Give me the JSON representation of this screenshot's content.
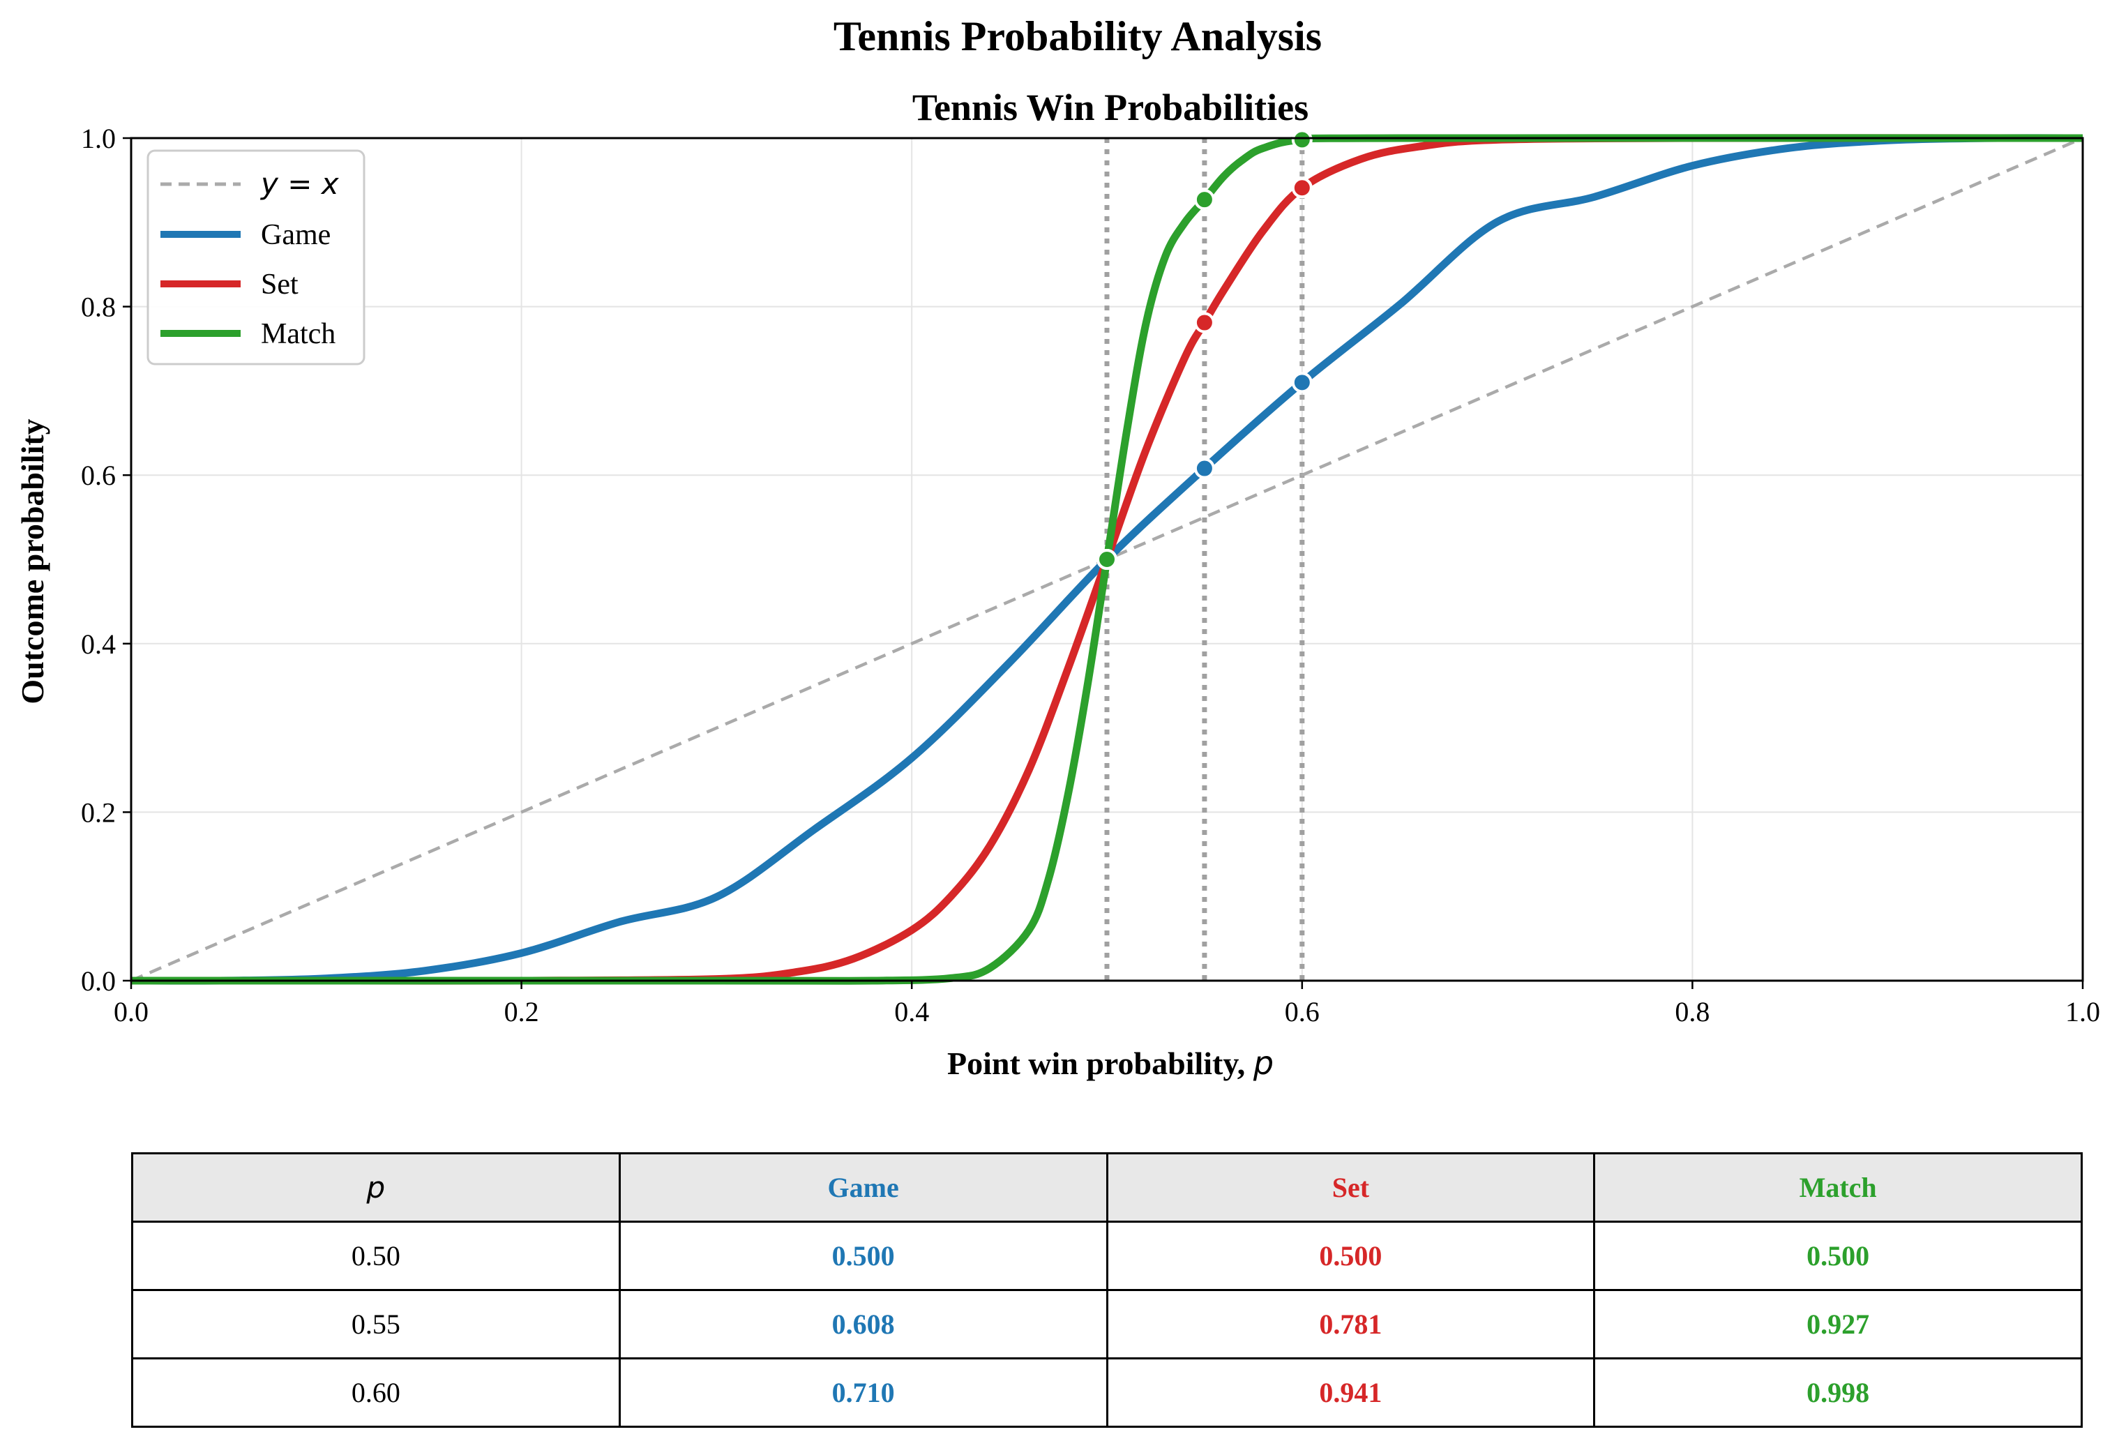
{
  "figure_title": "Tennis Probability Analysis",
  "colors": {
    "game": "#1f77b4",
    "set": "#d62728",
    "match": "#2ca02c",
    "ref": "#aaaaaa",
    "grid": "#e4e4e4"
  },
  "chart_data": {
    "type": "line",
    "title": "Tennis Win Probabilities",
    "xlabel": "Point win probability, ",
    "xlabel_symbol": "p",
    "ylabel": "Outcome probability",
    "xlim": [
      0,
      1
    ],
    "ylim": [
      0,
      1
    ],
    "xticks": [
      "0.0",
      "0.2",
      "0.4",
      "0.6",
      "0.8",
      "1.0"
    ],
    "yticks": [
      "0.0",
      "0.2",
      "0.4",
      "0.6",
      "0.8",
      "1.0"
    ],
    "grid": true,
    "legend_placement": "top-left",
    "legend": [
      "y = x",
      "Game",
      "Set",
      "Match"
    ],
    "reference_line": {
      "name": "y = x",
      "style": "dashed"
    },
    "vertical_markers": [
      0.5,
      0.55,
      0.6
    ],
    "series": [
      {
        "name": "Game",
        "x": [
          0,
          0.05,
          0.1,
          0.15,
          0.2,
          0.25,
          0.3,
          0.35,
          0.4,
          0.45,
          0.5,
          0.55,
          0.6,
          0.65,
          0.7,
          0.75,
          0.8,
          0.85,
          0.9,
          0.95,
          1
        ],
        "y": [
          0,
          0.0001,
          0.0027,
          0.0117,
          0.0328,
          0.0696,
          0.0994,
          0.1794,
          0.2643,
          0.3774,
          0.5,
          0.608,
          0.71,
          0.8023,
          0.9006,
          0.9304,
          0.9672,
          0.9883,
          0.9973,
          0.9999,
          1
        ]
      },
      {
        "name": "Set",
        "x": [
          0,
          0.1,
          0.2,
          0.3,
          0.34,
          0.37,
          0.4,
          0.42,
          0.44,
          0.46,
          0.48,
          0.5,
          0.52,
          0.54,
          0.55,
          0.56,
          0.58,
          0.6,
          0.63,
          0.66,
          0.7,
          0.8,
          1
        ],
        "y": [
          0,
          0,
          0,
          0.002,
          0.01,
          0.026,
          0.06,
          0.1,
          0.16,
          0.25,
          0.37,
          0.5,
          0.63,
          0.74,
          0.781,
          0.82,
          0.89,
          0.941,
          0.975,
          0.99,
          0.998,
          1,
          1
        ]
      },
      {
        "name": "Match",
        "x": [
          0,
          0.3,
          0.38,
          0.42,
          0.44,
          0.46,
          0.47,
          0.48,
          0.49,
          0.5,
          0.51,
          0.52,
          0.53,
          0.54,
          0.55,
          0.56,
          0.57,
          0.58,
          0.6,
          0.65,
          1
        ],
        "y": [
          0,
          0,
          0,
          0.003,
          0.015,
          0.06,
          0.12,
          0.22,
          0.35,
          0.5,
          0.65,
          0.78,
          0.86,
          0.9,
          0.927,
          0.955,
          0.975,
          0.988,
          0.998,
          1,
          1
        ]
      }
    ],
    "markers": [
      {
        "series": "Game",
        "points": [
          [
            0.5,
            0.5
          ],
          [
            0.55,
            0.608
          ],
          [
            0.6,
            0.71
          ]
        ]
      },
      {
        "series": "Set",
        "points": [
          [
            0.5,
            0.5
          ],
          [
            0.55,
            0.781
          ],
          [
            0.6,
            0.941
          ]
        ]
      },
      {
        "series": "Match",
        "points": [
          [
            0.5,
            0.5
          ],
          [
            0.55,
            0.927
          ],
          [
            0.6,
            0.998
          ]
        ]
      }
    ]
  },
  "table": {
    "headers": [
      "p",
      "Game",
      "Set",
      "Match"
    ],
    "rows": [
      [
        "0.50",
        "0.500",
        "0.500",
        "0.500"
      ],
      [
        "0.55",
        "0.608",
        "0.781",
        "0.927"
      ],
      [
        "0.60",
        "0.710",
        "0.941",
        "0.998"
      ]
    ]
  }
}
